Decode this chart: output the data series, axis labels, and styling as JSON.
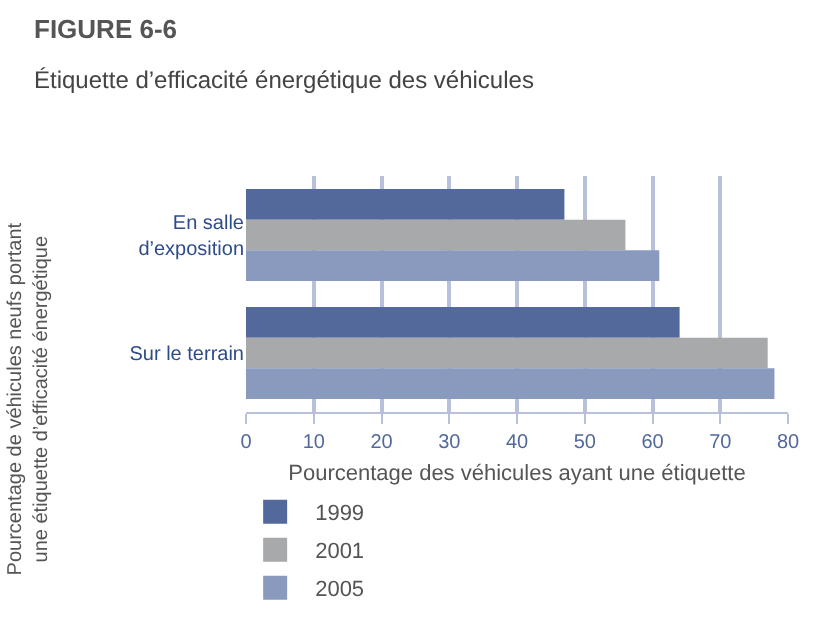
{
  "chart_data": {
    "type": "bar",
    "orientation": "horizontal",
    "title": "FIGURE 6-6",
    "subtitle": "Étiquette d’efficacité énergétique des véhicules",
    "xlabel": "Pourcentage des véhicules ayant une étiquette",
    "ylabel": "Pourcentage de véhicules neufs portant\nune étiquette d’efficacité énergétique",
    "categories": [
      "En salle\nd’exposition",
      "Sur le terrain"
    ],
    "series": [
      {
        "name": "1999",
        "color": "#53699b",
        "values": [
          47,
          64
        ]
      },
      {
        "name": "2001",
        "color": "#a8a9aa",
        "values": [
          56,
          77
        ]
      },
      {
        "name": "2005",
        "color": "#8a9abf",
        "values": [
          61,
          78
        ]
      }
    ],
    "xlim": [
      0,
      80
    ],
    "xticks": [
      0,
      10,
      20,
      30,
      40,
      50,
      60,
      70,
      80
    ],
    "grid": "x",
    "legend": "bottom left"
  }
}
